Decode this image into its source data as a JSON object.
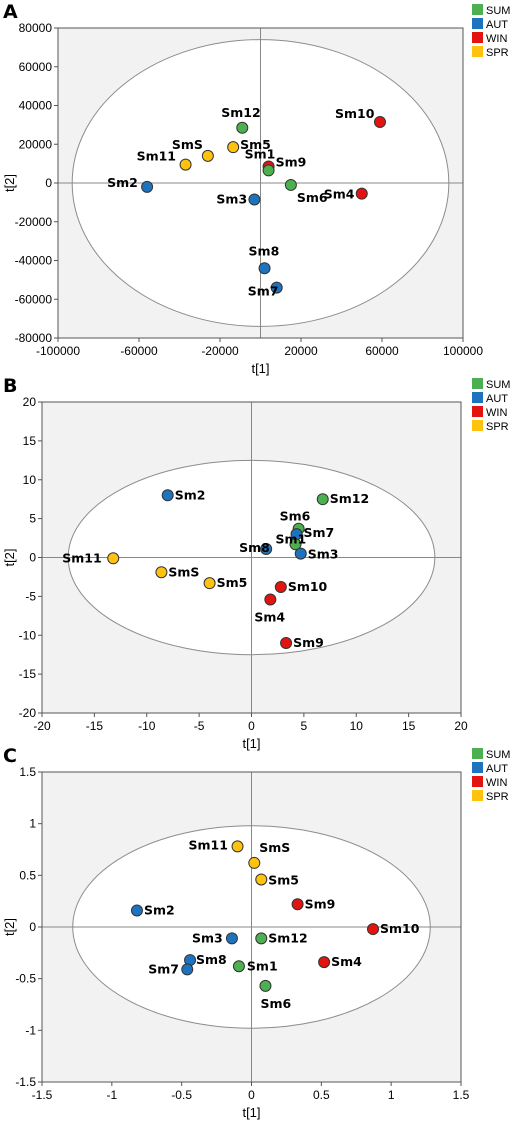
{
  "chart_data": [
    {
      "type": "scatter",
      "panel": "A",
      "xlabel": "t[1]",
      "ylabel": "t[2]",
      "xlim": [
        -100000,
        100000
      ],
      "ylim": [
        -80000,
        80000
      ],
      "xticks": [
        "-100000",
        "-60000",
        "-20000",
        "20000",
        "60000",
        "100000"
      ],
      "yticks": [
        "80000",
        "60000",
        "40000",
        "20000",
        "0",
        "-20000",
        "-40000",
        "-60000",
        "-80000"
      ],
      "ellipse": {
        "cx": 0,
        "cy": 0,
        "rx": 93000,
        "ry": 74000
      },
      "legend": [
        "SUM",
        "AUT",
        "WIN",
        "SPR"
      ],
      "points": [
        {
          "label": "Sm12",
          "group": "SUM",
          "x": -9000,
          "y": 28500
        },
        {
          "label": "SmS",
          "group": "SPR",
          "x": -26000,
          "y": 14000
        },
        {
          "label": "Sm5",
          "group": "SPR",
          "x": -13500,
          "y": 18500
        },
        {
          "label": "Sm11",
          "group": "SPR",
          "x": -37000,
          "y": 9500
        },
        {
          "label": "Sm10",
          "group": "WIN",
          "x": 59000,
          "y": 31500
        },
        {
          "label": "Sm1",
          "group": "WIN",
          "x": 4000,
          "y": 8500
        },
        {
          "label": "Sm9",
          "group": "SUM",
          "x": 4000,
          "y": 6500
        },
        {
          "label": "Sm2",
          "group": "AUT",
          "x": -56000,
          "y": -2000
        },
        {
          "label": "Sm3",
          "group": "AUT",
          "x": -3000,
          "y": -8500
        },
        {
          "label": "Sm6",
          "group": "SUM",
          "x": 15000,
          "y": -1000
        },
        {
          "label": "Sm4",
          "group": "WIN",
          "x": 50000,
          "y": -5500
        },
        {
          "label": "Sm8",
          "group": "AUT",
          "x": 2000,
          "y": -44000
        },
        {
          "label": "Sm7",
          "group": "AUT",
          "x": 8000,
          "y": -54000
        }
      ]
    },
    {
      "type": "scatter",
      "panel": "B",
      "xlabel": "t[1]",
      "ylabel": "t[2]",
      "xlim": [
        -20,
        20
      ],
      "ylim": [
        -20,
        20
      ],
      "xticks": [
        "-20",
        "-15",
        "-10",
        "-5",
        "0",
        "5",
        "10",
        "15",
        "20"
      ],
      "yticks": [
        "20",
        "15",
        "10",
        "5",
        "0",
        "-5",
        "-10",
        "-15",
        "-20"
      ],
      "ellipse": {
        "cx": 0,
        "cy": 0,
        "rx": 17.5,
        "ry": 12.5
      },
      "legend": [
        "SUM",
        "AUT",
        "WIN",
        "SPR"
      ],
      "points": [
        {
          "label": "Sm2",
          "group": "AUT",
          "x": -8,
          "y": 8
        },
        {
          "label": "Sm12",
          "group": "SUM",
          "x": 6.8,
          "y": 7.5
        },
        {
          "label": "Sm6",
          "group": "SUM",
          "x": 4.5,
          "y": 3.7
        },
        {
          "label": "Sm7",
          "group": "AUT",
          "x": 4.3,
          "y": 3
        },
        {
          "label": "Sm1",
          "group": "SUM",
          "x": 4.2,
          "y": 1.7
        },
        {
          "label": "Sm8",
          "group": "AUT",
          "x": 1.4,
          "y": 1.1
        },
        {
          "label": "Sm3",
          "group": "AUT",
          "x": 4.7,
          "y": 0.5
        },
        {
          "label": "Sm11",
          "group": "SPR",
          "x": -13.2,
          "y": -0.1
        },
        {
          "label": "SmS",
          "group": "SPR",
          "x": -8.6,
          "y": -1.9
        },
        {
          "label": "Sm5",
          "group": "SPR",
          "x": -4,
          "y": -3.3
        },
        {
          "label": "Sm10",
          "group": "WIN",
          "x": 2.8,
          "y": -3.8
        },
        {
          "label": "Sm4",
          "group": "WIN",
          "x": 1.8,
          "y": -5.4
        },
        {
          "label": "Sm9",
          "group": "WIN",
          "x": 3.3,
          "y": -11
        }
      ]
    },
    {
      "type": "scatter",
      "panel": "C",
      "xlabel": "t[1]",
      "ylabel": "t[2]",
      "xlim": [
        -1.5,
        1.5
      ],
      "ylim": [
        -1.5,
        1.5
      ],
      "xticks": [
        "-1.5",
        "-1",
        "-0.5",
        "0",
        "0.5",
        "1",
        "1.5"
      ],
      "yticks": [
        "1.5",
        "1",
        "0.5",
        "0",
        "-0.5",
        "-1",
        "-1.5"
      ],
      "ellipse": {
        "cx": 0,
        "cy": 0,
        "rx": 1.28,
        "ry": 0.98
      },
      "legend": [
        "SUM",
        "AUT",
        "WIN",
        "SPR"
      ],
      "points": [
        {
          "label": "Sm11",
          "group": "SPR",
          "x": -0.1,
          "y": 0.78
        },
        {
          "label": "SmS",
          "group": "SPR",
          "x": 0.02,
          "y": 0.62
        },
        {
          "label": "Sm5",
          "group": "SPR",
          "x": 0.07,
          "y": 0.46
        },
        {
          "label": "Sm9",
          "group": "WIN",
          "x": 0.33,
          "y": 0.22
        },
        {
          "label": "Sm2",
          "group": "AUT",
          "x": -0.82,
          "y": 0.16
        },
        {
          "label": "Sm10",
          "group": "WIN",
          "x": 0.87,
          "y": -0.02
        },
        {
          "label": "Sm3",
          "group": "AUT",
          "x": -0.14,
          "y": -0.11
        },
        {
          "label": "Sm12",
          "group": "SUM",
          "x": 0.07,
          "y": -0.11
        },
        {
          "label": "Sm8",
          "group": "AUT",
          "x": -0.44,
          "y": -0.32
        },
        {
          "label": "Sm4",
          "group": "WIN",
          "x": 0.52,
          "y": -0.34
        },
        {
          "label": "Sm7",
          "group": "AUT",
          "x": -0.46,
          "y": -0.41
        },
        {
          "label": "Sm1",
          "group": "SUM",
          "x": -0.09,
          "y": -0.38
        },
        {
          "label": "Sm6",
          "group": "SUM",
          "x": 0.1,
          "y": -0.57
        }
      ]
    }
  ],
  "colors": {
    "SUM": "#4caf50",
    "AUT": "#1e73be",
    "WIN": "#e3140f",
    "SPR": "#ffc20e",
    "plot_background": "#f2f2f2",
    "ellipse_fill": "#ffffff",
    "ellipse_stroke": "#8c8c8c"
  }
}
